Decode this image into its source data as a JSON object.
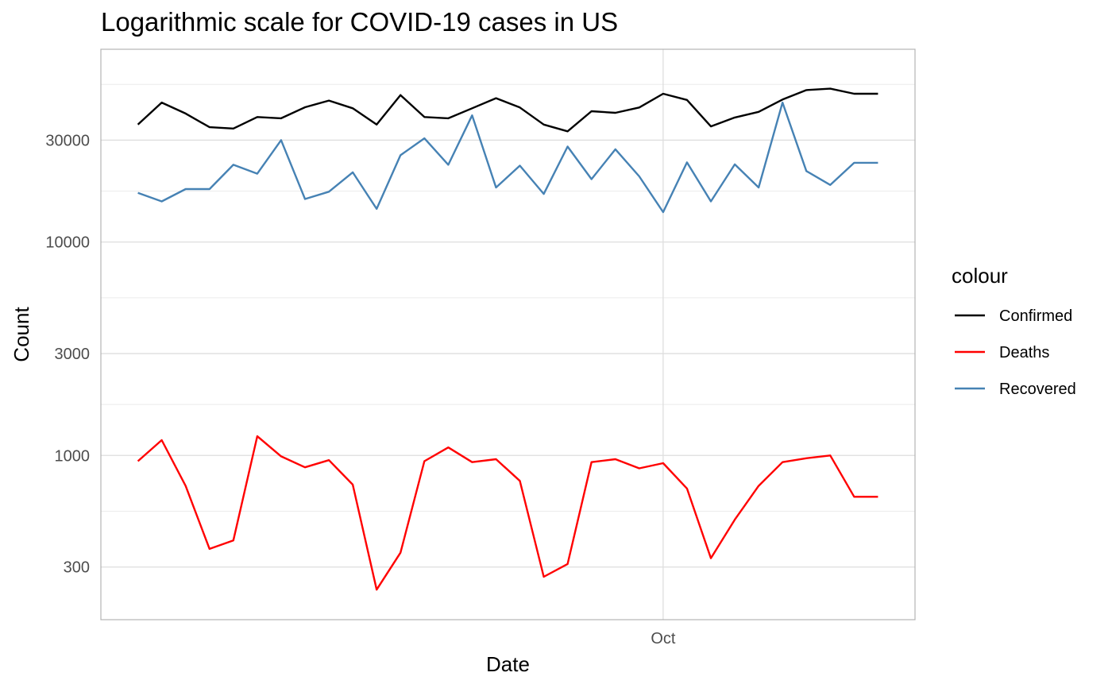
{
  "chart_data": {
    "type": "line",
    "title": "Logarithmic scale for COVID-19 cases in US",
    "xlabel": "Date",
    "ylabel": "Count",
    "y_scale": "log10",
    "x_scale": "date",
    "x": [
      "2020-09-09",
      "2020-09-10",
      "2020-09-11",
      "2020-09-12",
      "2020-09-13",
      "2020-09-14",
      "2020-09-15",
      "2020-09-16",
      "2020-09-17",
      "2020-09-18",
      "2020-09-19",
      "2020-09-20",
      "2020-09-21",
      "2020-09-22",
      "2020-09-23",
      "2020-09-24",
      "2020-09-25",
      "2020-09-26",
      "2020-09-27",
      "2020-09-28",
      "2020-09-29",
      "2020-09-30",
      "2020-10-01",
      "2020-10-02",
      "2020-10-03",
      "2020-10-04",
      "2020-10-05",
      "2020-10-06",
      "2020-10-07",
      "2020-10-08",
      "2020-10-09",
      "2020-10-10"
    ],
    "ylim": [
      170,
      80000
    ],
    "y_ticks": [
      300,
      1000,
      3000,
      10000,
      30000
    ],
    "y_tick_labels": [
      "300",
      "1000",
      "3000",
      "10000",
      "30000"
    ],
    "x_ticks": [
      "2020-10-01"
    ],
    "x_tick_labels": [
      "Oct"
    ],
    "grid": true,
    "legend": {
      "title": "colour",
      "position": "right"
    },
    "series": [
      {
        "name": "Confirmed",
        "color": "#000000",
        "values": [
          35500,
          45000,
          40000,
          34500,
          34000,
          38500,
          38000,
          42800,
          46000,
          42300,
          35500,
          48800,
          38500,
          38000,
          42300,
          47200,
          42700,
          35500,
          33000,
          41000,
          40300,
          42700,
          49500,
          46300,
          34800,
          38300,
          40700,
          46500,
          51500,
          52300,
          49500,
          49500
        ]
      },
      {
        "name": "Deaths",
        "color": "#ff0000",
        "values": [
          940,
          1180,
          720,
          365,
          400,
          1230,
          990,
          880,
          950,
          730,
          235,
          350,
          940,
          1090,
          930,
          960,
          760,
          270,
          310,
          930,
          960,
          870,
          920,
          700,
          330,
          500,
          720,
          930,
          970,
          1000,
          640,
          640
        ]
      },
      {
        "name": "Recovered",
        "color": "#4682b4",
        "values": [
          17000,
          15500,
          17700,
          17700,
          23000,
          20900,
          30000,
          15900,
          17200,
          21200,
          14300,
          25500,
          30600,
          23000,
          39200,
          18000,
          22800,
          16800,
          28000,
          19700,
          27200,
          20300,
          13800,
          23600,
          15500,
          23100,
          18000,
          45000,
          21500,
          18500,
          23500,
          23500
        ]
      }
    ]
  }
}
